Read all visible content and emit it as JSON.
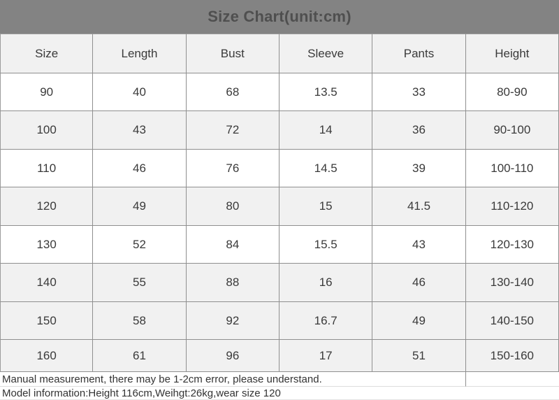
{
  "chart_data": {
    "type": "table",
    "title": "Size Chart(unit:cm)",
    "columns": [
      "Size",
      "Length",
      "Bust",
      "Sleeve",
      "Pants",
      "Height"
    ],
    "rows": [
      [
        "90",
        "40",
        "68",
        "13.5",
        "33",
        "80-90"
      ],
      [
        "100",
        "43",
        "72",
        "14",
        "36",
        "90-100"
      ],
      [
        "110",
        "46",
        "76",
        "14.5",
        "39",
        "100-110"
      ],
      [
        "120",
        "49",
        "80",
        "15",
        "41.5",
        "110-120"
      ],
      [
        "130",
        "52",
        "84",
        "15.5",
        "43",
        "120-130"
      ],
      [
        "140",
        "55",
        "88",
        "16",
        "46",
        "130-140"
      ],
      [
        "150",
        "58",
        "92",
        "16.7",
        "49",
        "140-150"
      ],
      [
        "160",
        "61",
        "96",
        "17",
        "51",
        "150-160"
      ]
    ],
    "notes": [
      "Manual measurement, there may be 1-2cm error, please understand.",
      "Model information:Height 116cm,Weihgt:26kg,wear size 120"
    ]
  },
  "colors": {
    "title_bg": "#838383",
    "title_text": "#4f4f4f",
    "stripe_bg": "#f1f1f1",
    "table_border": "#8f8f8f",
    "cell_text": "#3a3a3a",
    "note_border": "#dcdcdc"
  }
}
